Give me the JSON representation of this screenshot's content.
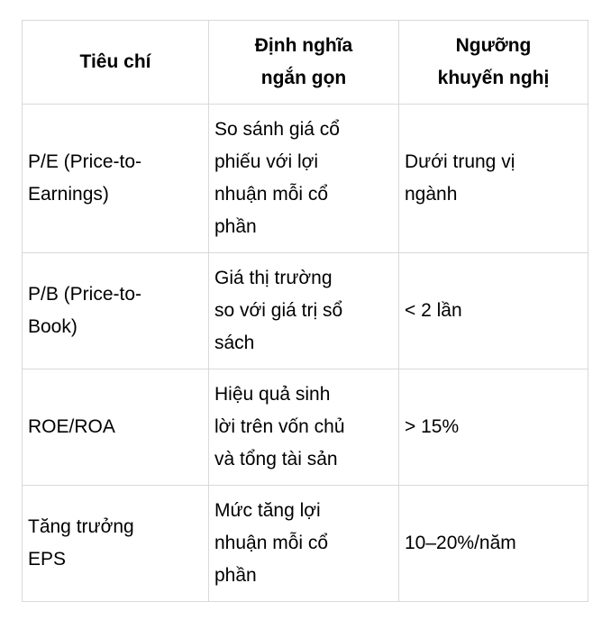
{
  "chart_data": {
    "type": "table",
    "columns": [
      "Tiêu chí",
      "Định nghĩa ngắn gọn",
      "Ngưỡng khuyến nghị"
    ],
    "rows": [
      [
        "P/E (Price-to-Earnings)",
        "So sánh giá cổ phiếu với lợi nhuận mỗi cổ phần",
        "Dưới trung vị ngành"
      ],
      [
        "P/B (Price-to-Book)",
        "Giá thị trường so với giá trị sổ sách",
        "< 2 lần"
      ],
      [
        "ROE/ROA",
        "Hiệu quả sinh lời trên vốn chủ và tổng tài sản",
        "> 15%"
      ],
      [
        "Tăng trưởng EPS",
        "Mức tăng lợi nhuận mỗi cổ phần",
        "10–20%/năm"
      ]
    ],
    "layout": {
      "grid": "full-borders",
      "header_style": "bold-centered",
      "border_color": "#d9d9d9",
      "text_color": "#000000",
      "background_color": "#ffffff"
    }
  },
  "table": {
    "headers": {
      "criterion": "Tiêu chí",
      "definition": "Định nghĩa\nngắn gọn",
      "threshold": "Ngưỡng\nkhuyến nghị"
    },
    "rows": [
      {
        "criterion": "P/E (Price-to-\nEarnings)",
        "definition": "So sánh giá cổ\nphiếu với lợi\nnhuận mỗi cổ\nphần",
        "threshold": "Dưới trung vị\nngành"
      },
      {
        "criterion": "P/B (Price-to-\nBook)",
        "definition": "Giá thị trường\nso với giá trị sổ\nsách",
        "threshold": "< 2 lần"
      },
      {
        "criterion": "ROE/ROA",
        "definition": "Hiệu quả sinh\nlời trên vốn chủ\nvà tổng tài sản",
        "threshold": "> 15%"
      },
      {
        "criterion": "Tăng trưởng\nEPS",
        "definition": "Mức tăng lợi\nnhuận mỗi cổ\nphần",
        "threshold": "10–20%/năm"
      }
    ]
  }
}
